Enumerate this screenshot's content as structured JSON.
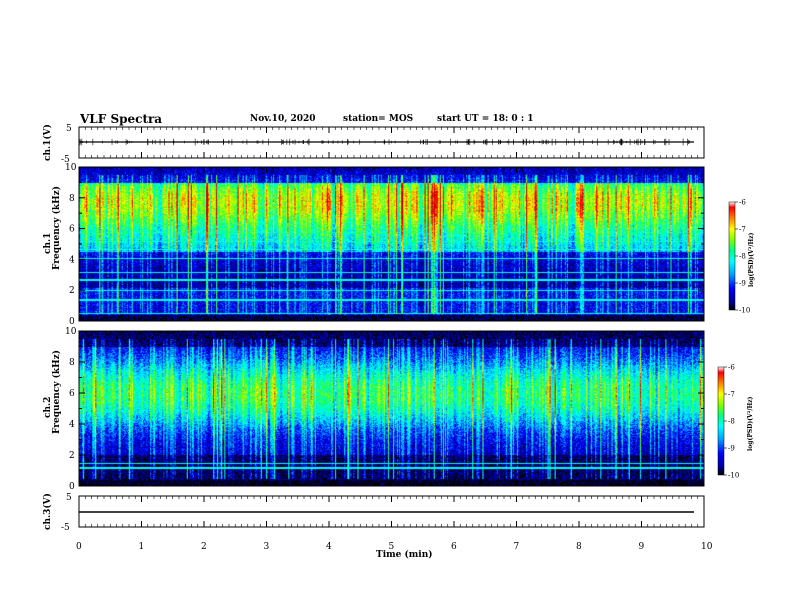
{
  "header": {
    "title": "VLF Spectra",
    "date": "Nov.10, 2020",
    "station": "station= MOS",
    "start_ut": "start  UT =   18: 0  : 1"
  },
  "colors": {
    "colormap": [
      "#000000",
      "#0000a0",
      "#0000ff",
      "#00a0ff",
      "#00ffff",
      "#00ff80",
      "#80ff00",
      "#ffff00",
      "#ff8000",
      "#ff0000",
      "#c00000"
    ],
    "trace": "#000000",
    "frame": "#000000",
    "background": "#ffffff"
  },
  "chart_data": [
    {
      "type": "line",
      "panel": "ch1-waveform",
      "ylabel": "ch.1(V)",
      "yticklabels": [
        "5",
        "-5"
      ],
      "ylim": [
        -5,
        5
      ],
      "xlim": [
        0,
        10
      ],
      "series": [
        {
          "values_description_free": true,
          "level": 0
        }
      ]
    },
    {
      "type": "heatmap",
      "panel": "ch1-spectrogram",
      "ylabel": "ch.1\nFrequency (kHz)",
      "ylabel_line1": "ch.1",
      "ylabel_line2": "Frequency (kHz)",
      "yticks": [
        0,
        2,
        4,
        6,
        8,
        10
      ],
      "ylim": [
        0,
        10
      ],
      "xlim": [
        0,
        10
      ],
      "colorbar": {
        "label": "log(PSD)(V²/Hz)",
        "ticks": [
          -6,
          -7,
          -8,
          -9,
          -10
        ],
        "range": [
          -10,
          -6
        ]
      }
    },
    {
      "type": "heatmap",
      "panel": "ch2-spectrogram",
      "ylabel_line1": "ch.2",
      "ylabel_line2": "Frequency (kHz)",
      "yticks": [
        0,
        2,
        4,
        6,
        8,
        10
      ],
      "ylim": [
        0,
        10
      ],
      "xlim": [
        0,
        10
      ],
      "colorbar": {
        "label": "log(PSD)(V²/Hz)",
        "ticks": [
          -6,
          -7,
          -8,
          -9,
          -10
        ],
        "range": [
          -10,
          -6
        ]
      }
    },
    {
      "type": "line",
      "panel": "ch3-waveform",
      "ylabel": "ch.3(V)",
      "yticklabels": [
        "5",
        "-5"
      ],
      "ylim": [
        -5,
        5
      ],
      "xlim": [
        0,
        10
      ],
      "series": [
        {
          "level": -1.5
        }
      ]
    }
  ],
  "xaxis": {
    "label": "Time (min)",
    "ticks": [
      "0",
      "1",
      "2",
      "3",
      "4",
      "5",
      "6",
      "7",
      "8",
      "9",
      "10"
    ]
  },
  "colorbar_label": "log(PSD)(V²/Hz)",
  "colorbar_ticks": [
    "-6",
    "-7",
    "-8",
    "-9",
    "-10"
  ],
  "panel_labels": {
    "ch1_wave": "ch.1(V)",
    "ch1_spec_a": "ch.1",
    "ch1_spec_b": "Frequency (kHz)",
    "ch2_spec_a": "ch.2",
    "ch2_spec_b": "Frequency (kHz)",
    "ch3_wave": "ch.3(V)",
    "wave_top": "5",
    "wave_bottom": "-5",
    "spec_yticks": [
      "0",
      "2",
      "4",
      "6",
      "8",
      "10"
    ]
  }
}
